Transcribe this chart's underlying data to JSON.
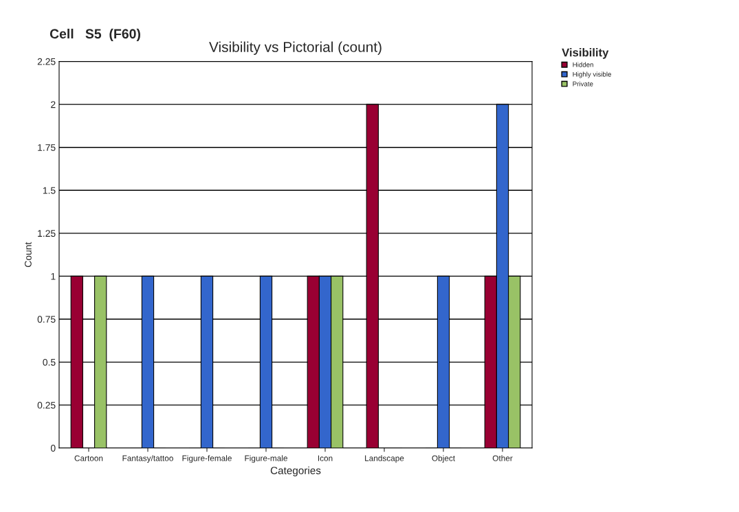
{
  "chart_data": {
    "type": "bar",
    "title": "Visibility vs Pictorial (count)",
    "xlabel": "Categories",
    "ylabel": "Count",
    "legend_title": "Visibility",
    "annotations": [
      "Cell   S5  (F60)"
    ],
    "categories": [
      "Cartoon",
      "Fantasy/tattoo",
      "Figure-female",
      "Figure-male",
      "Icon",
      "Landscape",
      "Object",
      "Other"
    ],
    "series": [
      {
        "name": "Hidden",
        "color": "#990033",
        "values": [
          1,
          0,
          0,
          0,
          1,
          2,
          0,
          1
        ]
      },
      {
        "name": "Highly visible",
        "color": "#3366cc",
        "values": [
          0,
          1,
          1,
          1,
          1,
          0,
          1,
          2
        ]
      },
      {
        "name": "Private",
        "color": "#99c266",
        "values": [
          1,
          0,
          0,
          0,
          1,
          0,
          0,
          1
        ]
      }
    ],
    "ylim": [
      0,
      2.25
    ],
    "yticks": [
      0,
      0.25,
      0.5,
      0.75,
      1,
      1.25,
      1.5,
      1.75,
      2,
      2.25
    ],
    "grid": "y",
    "legend": "top right"
  }
}
